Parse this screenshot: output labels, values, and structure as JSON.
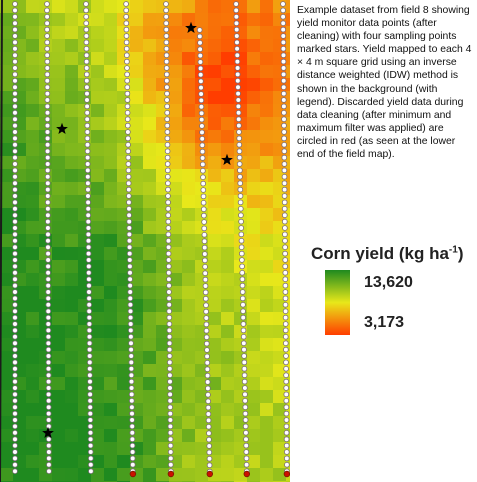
{
  "caption": "Example dataset from field 8 showing yield monitor data points (after cleaning) with four sampling points marked stars. Yield mapped to each 4 × 4 m square grid using an inverse distance weighted (IDW) method is shown in the background (with legend). Discarded yield data during data cleaning (after minimum and maximum filter was applied) are circled in red (as seen at the lower end of the field map).",
  "legend": {
    "title_main": "Corn yield (kg ha",
    "title_sup": "-1",
    "title_end": ")",
    "max_label": "13,620",
    "min_label": "3,173",
    "colors": {
      "high": "#1f8a1f",
      "mid": "#e8e81a",
      "low": "#ff3d00"
    }
  },
  "map": {
    "background": "idw-yield-grid",
    "marker_icons": {
      "sampling_point": "star-icon",
      "yield_point": "circle-dot",
      "discarded_point": "red-circle-dot"
    },
    "colors": {
      "point_fill": "#ffffff",
      "point_stroke": "#7a6a7a",
      "discarded": "#cc1100",
      "star": "#000000",
      "field_edge": "#1a1a1a"
    }
  }
}
